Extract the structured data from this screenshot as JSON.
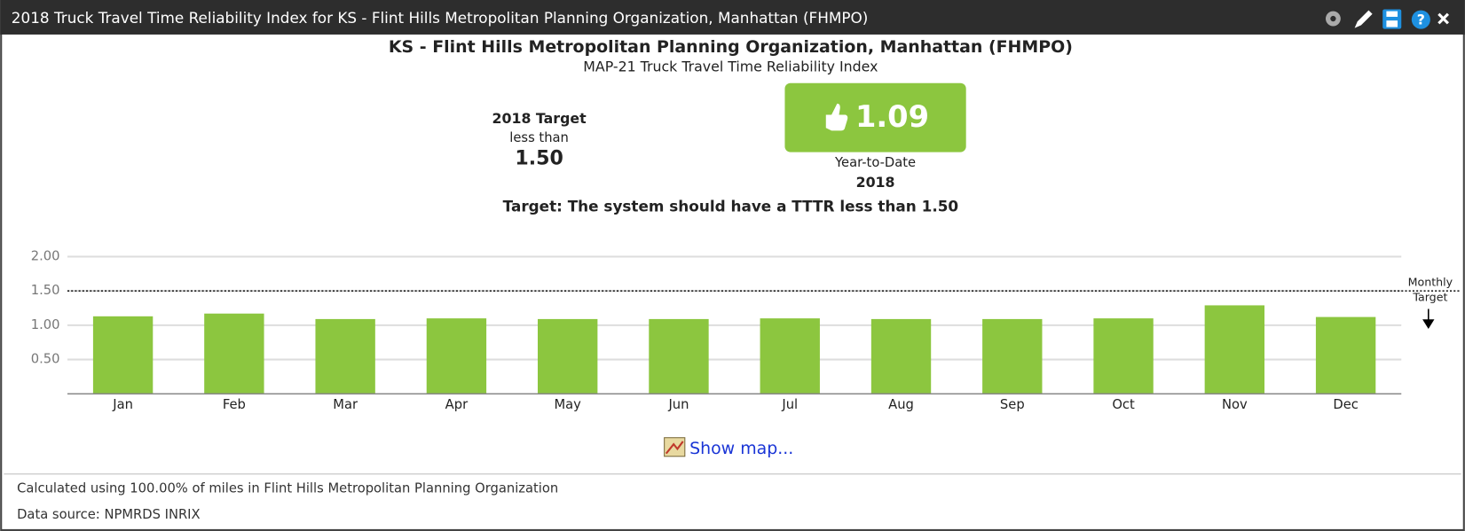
{
  "window": {
    "title": "2018 Truck Travel Time Reliability Index for KS - Flint Hills Metropolitan Planning Organization, Manhattan (FHMPO)"
  },
  "header": {
    "title": "KS - Flint Hills Metropolitan Planning Organization, Manhattan (FHMPO)",
    "subtitle": "MAP-21 Truck Travel Time Reliability Index"
  },
  "target": {
    "title": "2018 Target",
    "qualifier": "less than",
    "value": "1.50"
  },
  "ytd": {
    "value": "1.09",
    "label": "Year-to-Date",
    "year": "2018"
  },
  "statement": "Target: The system should have a TTTR less than 1.50",
  "chart_data": {
    "type": "bar",
    "categories": [
      "Jan",
      "Feb",
      "Mar",
      "Apr",
      "May",
      "Jun",
      "Jul",
      "Aug",
      "Sep",
      "Oct",
      "Nov",
      "Dec"
    ],
    "values": [
      1.13,
      1.17,
      1.09,
      1.1,
      1.09,
      1.09,
      1.1,
      1.09,
      1.09,
      1.1,
      1.29,
      1.12
    ],
    "color": "#8cc63f",
    "ylim": [
      0,
      2
    ],
    "yticks": [
      {
        "value": 0.5,
        "label": "0.50"
      },
      {
        "value": 1,
        "label": "1.00"
      },
      {
        "value": 1.5,
        "label": "1.50"
      },
      {
        "value": 2,
        "label": "2.00"
      }
    ],
    "grid": true,
    "target": 1.5,
    "target_label": [
      "Monthly",
      "Target"
    ]
  },
  "link": "Show map...",
  "footer": [
    "Calculated using 100.00% of miles in Flint Hills Metropolitan Planning Organization",
    "Data source: NPMRDS INRIX"
  ]
}
